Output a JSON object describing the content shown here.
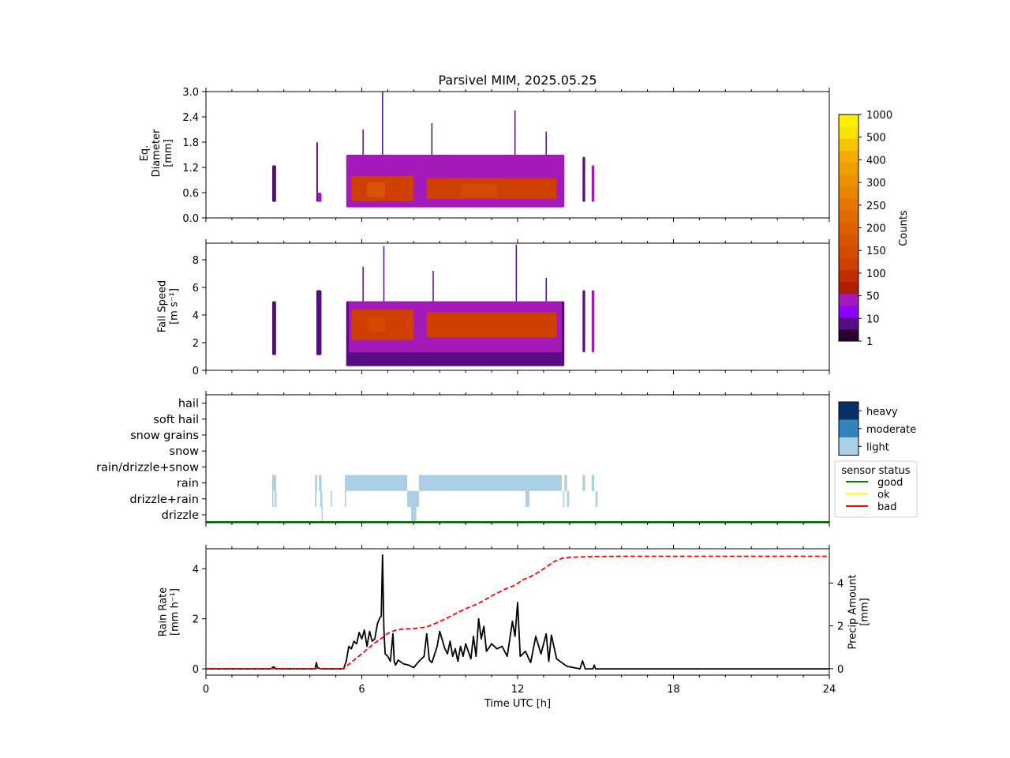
{
  "figure": {
    "title": "Parsivel MIM, 2025.05.25",
    "xlabel": "Time UTC [h]",
    "xticks": [
      "0",
      "6",
      "12",
      "18",
      "24"
    ],
    "xlim": [
      0,
      24
    ]
  },
  "chart_data": [
    {
      "id": "diameter",
      "type": "heatmap",
      "ylabel_lines": [
        "Eq.",
        "Diameter",
        "[mm]"
      ],
      "ylim": [
        0,
        3.0
      ],
      "yticks": [
        "0.0",
        "0.6",
        "1.2",
        "1.8",
        "2.4",
        "3.0"
      ],
      "ytick_values": [
        0,
        0.6,
        1.2,
        1.8,
        2.4,
        3.0
      ],
      "colorbar": "Counts",
      "regions": [
        {
          "x": [
            2.55,
            2.7
          ],
          "y": [
            0.38,
            1.25
          ],
          "level": 1
        },
        {
          "x": [
            4.25,
            4.3
          ],
          "y": [
            0.38,
            1.8
          ],
          "level": 1
        },
        {
          "x": [
            4.3,
            4.45
          ],
          "y": [
            0.38,
            0.6
          ],
          "level": 3
        },
        {
          "x": [
            5.4,
            13.8
          ],
          "y": [
            0.25,
            1.5
          ],
          "level": 3
        },
        {
          "x": [
            5.6,
            8.0
          ],
          "y": [
            0.4,
            1.0
          ],
          "level": 6
        },
        {
          "x": [
            8.5,
            13.5
          ],
          "y": [
            0.45,
            0.95
          ],
          "level": 6
        },
        {
          "x": [
            6.2,
            6.9
          ],
          "y": [
            0.5,
            0.85
          ],
          "level": 8
        },
        {
          "x": [
            9.8,
            11.2
          ],
          "y": [
            0.5,
            0.8
          ],
          "level": 7
        },
        {
          "x": [
            14.5,
            14.6
          ],
          "y": [
            0.38,
            1.45
          ],
          "level": 1
        },
        {
          "x": [
            14.85,
            14.95
          ],
          "y": [
            0.38,
            1.25
          ],
          "level": 3
        }
      ],
      "peaks": [
        {
          "x": 6.8,
          "y": 3.0
        },
        {
          "x": 8.7,
          "y": 2.25
        },
        {
          "x": 11.9,
          "y": 2.55
        },
        {
          "x": 13.1,
          "y": 2.05
        },
        {
          "x": 6.05,
          "y": 2.1
        }
      ]
    },
    {
      "id": "fall_speed",
      "type": "heatmap",
      "ylabel_lines": [
        "Fall Speed",
        "[m s⁻¹]"
      ],
      "ylim": [
        0,
        9.2
      ],
      "yticks": [
        "0",
        "2",
        "4",
        "6",
        "8"
      ],
      "ytick_values": [
        0,
        2,
        4,
        6,
        8
      ],
      "regions": [
        {
          "x": [
            2.55,
            2.7
          ],
          "y": [
            1.1,
            5.0
          ],
          "level": 1
        },
        {
          "x": [
            4.25,
            4.45
          ],
          "y": [
            1.1,
            5.8
          ],
          "level": 1
        },
        {
          "x": [
            5.4,
            13.8
          ],
          "y": [
            0.3,
            5.0
          ],
          "level": 1
        },
        {
          "x": [
            5.5,
            13.7
          ],
          "y": [
            1.3,
            5.0
          ],
          "level": 3
        },
        {
          "x": [
            5.6,
            8.0
          ],
          "y": [
            2.2,
            4.4
          ],
          "level": 6
        },
        {
          "x": [
            8.5,
            13.5
          ],
          "y": [
            2.4,
            4.2
          ],
          "level": 6
        },
        {
          "x": [
            6.3,
            6.9
          ],
          "y": [
            2.8,
            3.8
          ],
          "level": 7
        },
        {
          "x": [
            14.5,
            14.6
          ],
          "y": [
            1.3,
            5.8
          ],
          "level": 1
        },
        {
          "x": [
            14.85,
            14.95
          ],
          "y": [
            1.3,
            5.8
          ],
          "level": 3
        }
      ],
      "peaks": [
        {
          "x": 6.85,
          "y": 9.0
        },
        {
          "x": 11.95,
          "y": 9.1
        },
        {
          "x": 8.75,
          "y": 7.2
        },
        {
          "x": 13.1,
          "y": 6.7
        },
        {
          "x": 6.05,
          "y": 7.5
        }
      ]
    },
    {
      "id": "precip_type",
      "type": "heatmap",
      "categories": [
        "drizzle",
        "drizzle+rain",
        "rain",
        "rain/drizzle+snow",
        "snow",
        "snow grains",
        "soft hail",
        "hail"
      ],
      "intensity_legend": [
        "heavy",
        "moderate",
        "light"
      ],
      "intensity_colors": [
        "#08306b",
        "#3182bd",
        "#abd0e6"
      ],
      "status_legend_title": "sensor status",
      "status_legend": [
        {
          "label": "good",
          "color": "#008000"
        },
        {
          "label": "ok",
          "color": "#ffff00"
        },
        {
          "label": "bad",
          "color": "#ff0000"
        }
      ],
      "sensor_status": "good",
      "segments": [
        {
          "cat": "rain",
          "x": [
            2.55,
            2.7
          ]
        },
        {
          "cat": "rain",
          "x": [
            4.2,
            4.28
          ]
        },
        {
          "cat": "rain",
          "x": [
            4.35,
            4.45
          ]
        },
        {
          "cat": "rain",
          "x": [
            5.35,
            7.75
          ]
        },
        {
          "cat": "rain",
          "x": [
            8.2,
            13.7
          ]
        },
        {
          "cat": "rain",
          "x": [
            13.8,
            13.9
          ]
        },
        {
          "cat": "rain",
          "x": [
            14.5,
            14.6
          ]
        },
        {
          "cat": "rain",
          "x": [
            14.85,
            14.95
          ]
        },
        {
          "cat": "drizzle+rain",
          "x": [
            2.55,
            2.6
          ]
        },
        {
          "cat": "drizzle+rain",
          "x": [
            2.65,
            2.72
          ]
        },
        {
          "cat": "drizzle+rain",
          "x": [
            4.2,
            4.25
          ]
        },
        {
          "cat": "drizzle+rain",
          "x": [
            4.4,
            4.48
          ]
        },
        {
          "cat": "drizzle+rain",
          "x": [
            4.8,
            4.85
          ]
        },
        {
          "cat": "drizzle+rain",
          "x": [
            5.35,
            5.4
          ]
        },
        {
          "cat": "drizzle+rain",
          "x": [
            7.75,
            8.2
          ]
        },
        {
          "cat": "drizzle+rain",
          "x": [
            12.3,
            12.45
          ]
        },
        {
          "cat": "drizzle+rain",
          "x": [
            13.75,
            13.8
          ]
        },
        {
          "cat": "drizzle+rain",
          "x": [
            13.9,
            13.98
          ]
        },
        {
          "cat": "drizzle+rain",
          "x": [
            15.0,
            15.08
          ]
        },
        {
          "cat": "drizzle",
          "x": [
            4.45,
            4.5
          ]
        },
        {
          "cat": "drizzle",
          "x": [
            7.9,
            8.1
          ]
        }
      ]
    },
    {
      "id": "rain",
      "type": "line",
      "ylabel_lines": [
        "Rain Rate",
        "[mm h⁻¹]"
      ],
      "ylabel2_lines": [
        "Precip Amount",
        "[mm]"
      ],
      "ylim": [
        -0.25,
        4.8
      ],
      "yticks": [
        "0",
        "2",
        "4"
      ],
      "ytick_values": [
        0,
        2,
        4
      ],
      "ylim2": [
        -0.3,
        5.6
      ],
      "yticks2": [
        "0",
        "2",
        "4"
      ],
      "ytick2_values": [
        0,
        2,
        4
      ],
      "series": [
        {
          "axis": "left",
          "color": "#000000",
          "x": [
            0,
            2.5,
            2.6,
            2.7,
            4.2,
            4.25,
            4.3,
            4.4,
            5.3,
            5.4,
            5.5,
            5.6,
            5.7,
            5.8,
            5.9,
            6.0,
            6.1,
            6.2,
            6.3,
            6.4,
            6.5,
            6.6,
            6.7,
            6.75,
            6.8,
            6.85,
            6.9,
            7.0,
            7.1,
            7.2,
            7.25,
            7.3,
            7.4,
            7.6,
            7.8,
            8.0,
            8.2,
            8.4,
            8.5,
            8.6,
            8.7,
            8.9,
            9.0,
            9.2,
            9.3,
            9.4,
            9.5,
            9.6,
            9.7,
            9.8,
            9.9,
            10.0,
            10.2,
            10.3,
            10.4,
            10.5,
            10.6,
            10.7,
            10.8,
            11.0,
            11.2,
            11.4,
            11.6,
            11.8,
            11.9,
            12.0,
            12.1,
            12.3,
            12.5,
            12.7,
            12.9,
            13.1,
            13.2,
            13.3,
            13.5,
            13.7,
            13.9,
            14.0,
            14.4,
            14.5,
            14.6,
            14.9,
            14.95,
            15.0,
            16.0,
            24.0
          ],
          "values": [
            0,
            0,
            0.08,
            0,
            0,
            0.25,
            0.05,
            0,
            0,
            0.3,
            0.9,
            0.8,
            1.1,
            1.0,
            1.45,
            1.2,
            1.55,
            0.9,
            1.5,
            1.1,
            1.2,
            1.8,
            2.05,
            2.1,
            4.55,
            1.6,
            0.6,
            0.5,
            0.3,
            1.4,
            0.3,
            0.15,
            0.35,
            0.2,
            0.15,
            0.05,
            0.3,
            0.5,
            1.4,
            0.35,
            0.25,
            0.9,
            1.5,
            0.8,
            0.6,
            1.1,
            0.5,
            0.8,
            0.3,
            0.9,
            0.5,
            1.0,
            0.4,
            1.3,
            0.5,
            2.0,
            1.2,
            1.7,
            0.7,
            1.0,
            0.8,
            0.9,
            0.5,
            1.9,
            1.3,
            2.65,
            0.5,
            0.7,
            0.25,
            1.3,
            0.6,
            1.4,
            0.3,
            1.35,
            0.4,
            0.25,
            0.1,
            0.08,
            0,
            0.32,
            0,
            0,
            0.15,
            0,
            0,
            0
          ]
        },
        {
          "axis": "right",
          "color": "#ff0000",
          "dashed": true,
          "x": [
            0,
            5.3,
            5.6,
            6.0,
            6.5,
            6.8,
            7.0,
            7.3,
            7.6,
            8.0,
            8.5,
            9.0,
            9.5,
            10.0,
            10.5,
            11.0,
            11.5,
            11.9,
            12.2,
            12.5,
            12.8,
            13.1,
            13.4,
            13.7,
            14.0,
            14.5,
            15.0,
            16.0,
            24.0
          ],
          "values": [
            0,
            0,
            0.3,
            0.7,
            1.2,
            1.45,
            1.65,
            1.8,
            1.85,
            1.87,
            1.95,
            2.2,
            2.5,
            2.8,
            3.05,
            3.4,
            3.7,
            3.9,
            4.15,
            4.3,
            4.5,
            4.75,
            5.0,
            5.15,
            5.2,
            5.22,
            5.24,
            5.25,
            5.25
          ]
        }
      ]
    }
  ],
  "colorbar": {
    "label": "Counts",
    "ticks": [
      "1",
      "10",
      "50",
      "100",
      "150",
      "200",
      "250",
      "300",
      "400",
      "500",
      "1000"
    ],
    "colors": [
      "#2a0033",
      "#570c85",
      "#8b00ff",
      "#a41ab8",
      "#b11d00",
      "#c22b00",
      "#cf3f00",
      "#d34a00",
      "#d85500",
      "#dc5f00",
      "#e16900",
      "#e47700",
      "#e88400",
      "#ec9200",
      "#efa000",
      "#f2ad00",
      "#f6c600",
      "#fbe100",
      "#fff000"
    ]
  }
}
